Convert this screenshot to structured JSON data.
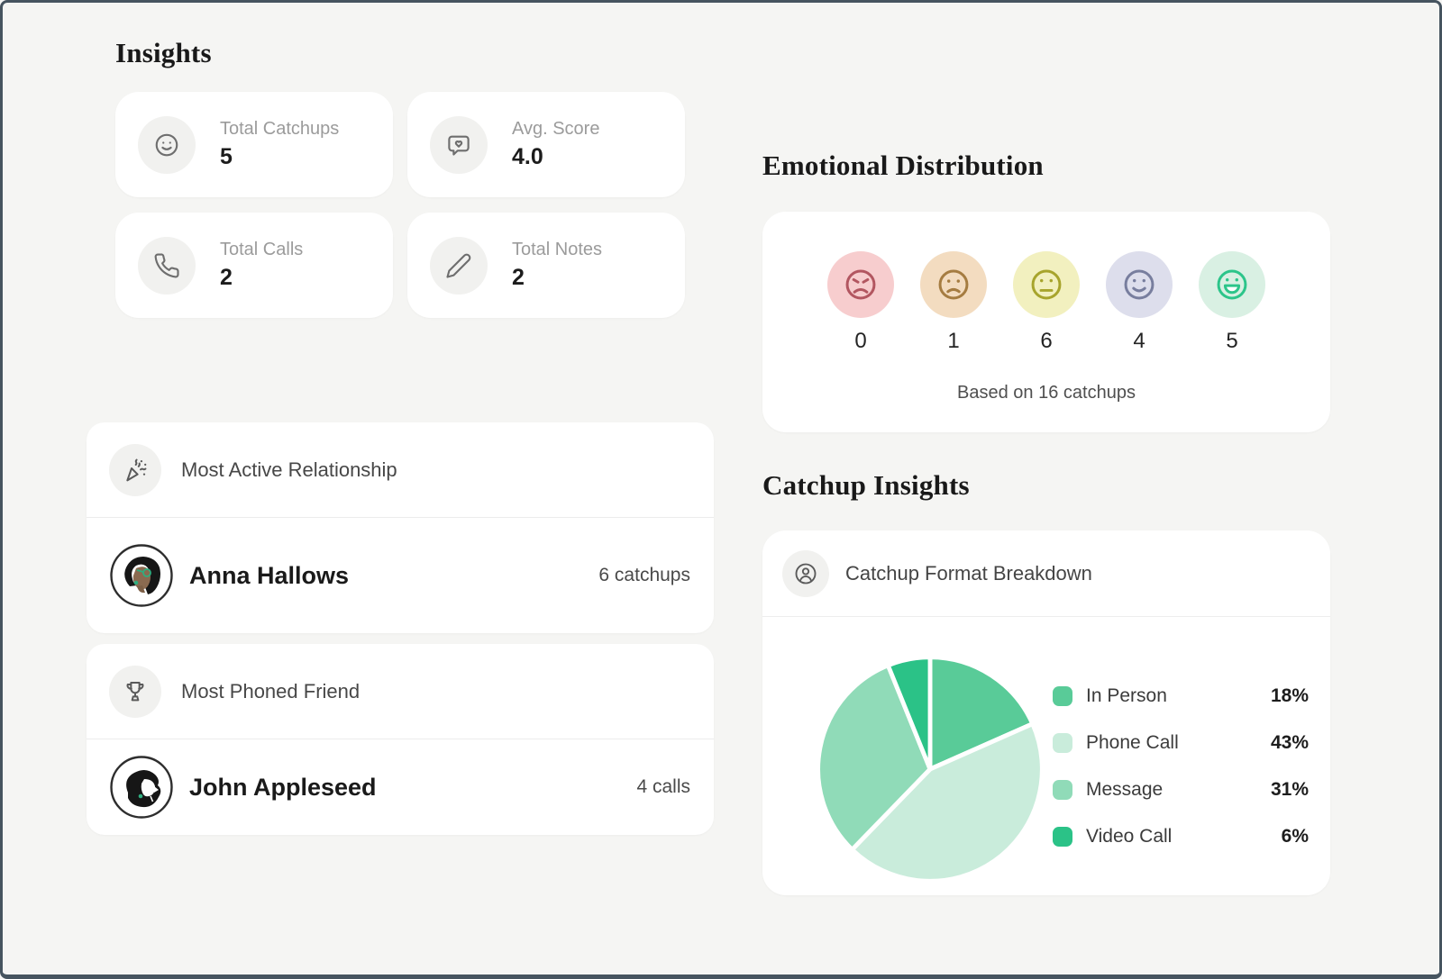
{
  "frame": {
    "background": "#f5f5f3",
    "border_color": "#46545f",
    "card_background": "#ffffff"
  },
  "insights": {
    "title": "Insights",
    "stats": [
      {
        "icon": "smiley-icon",
        "label": "Total Catchups",
        "value": "5"
      },
      {
        "icon": "message-heart-icon",
        "label": "Avg. Score",
        "value": "4.0"
      },
      {
        "icon": "phone-icon",
        "label": "Total Calls",
        "value": "2"
      },
      {
        "icon": "pencil-icon",
        "label": "Total Notes",
        "value": "2"
      }
    ],
    "most_active": {
      "icon": "party-popper-icon",
      "title": "Most Active Relationship",
      "avatar": "woman-illustration",
      "person": "Anna Hallows",
      "metric": "6 catchups"
    },
    "most_phoned": {
      "icon": "trophy-icon",
      "title": "Most Phoned Friend",
      "avatar": "man-illustration",
      "person": "John Appleseed",
      "metric": "4 calls"
    }
  },
  "emotional": {
    "title": "Emotional Distribution",
    "note": "Based on 16 catchups",
    "moods": [
      {
        "name": "angry",
        "count": "0",
        "bg": "#f7cdce",
        "color": "#b25660"
      },
      {
        "name": "sad",
        "count": "1",
        "bg": "#f3dcc0",
        "color": "#a57c41"
      },
      {
        "name": "neutral",
        "count": "6",
        "bg": "#f2f0bf",
        "color": "#a7a42c"
      },
      {
        "name": "content",
        "count": "4",
        "bg": "#dddeec",
        "color": "#787e9e"
      },
      {
        "name": "happy",
        "count": "5",
        "bg": "#d9f0e3",
        "color": "#2cc58a"
      }
    ]
  },
  "catchup": {
    "title": "Catchup Insights",
    "card_title": "Catchup Format Breakdown",
    "card_icon": "user-circle-icon"
  },
  "chart_data": [
    {
      "type": "pie",
      "title": "Catchup Format Breakdown",
      "labels": [
        "In Person",
        "Phone Call",
        "Message",
        "Video Call"
      ],
      "values": [
        18,
        43,
        31,
        6
      ],
      "display": [
        "18%",
        "43%",
        "31%",
        "6%"
      ],
      "colors": [
        "#59cb98",
        "#c9ecdb",
        "#90dbb8",
        "#2bc287"
      ],
      "start_angle_deg": -90,
      "direction": "clockwise",
      "legend_position": "right",
      "slice_gap_color": "#ffffff"
    },
    {
      "type": "bar",
      "title": "Emotional Distribution",
      "categories": [
        "angry",
        "sad",
        "neutral",
        "content",
        "happy"
      ],
      "values": [
        0,
        1,
        6,
        4,
        5
      ],
      "note": "Based on 16 catchups"
    }
  ]
}
